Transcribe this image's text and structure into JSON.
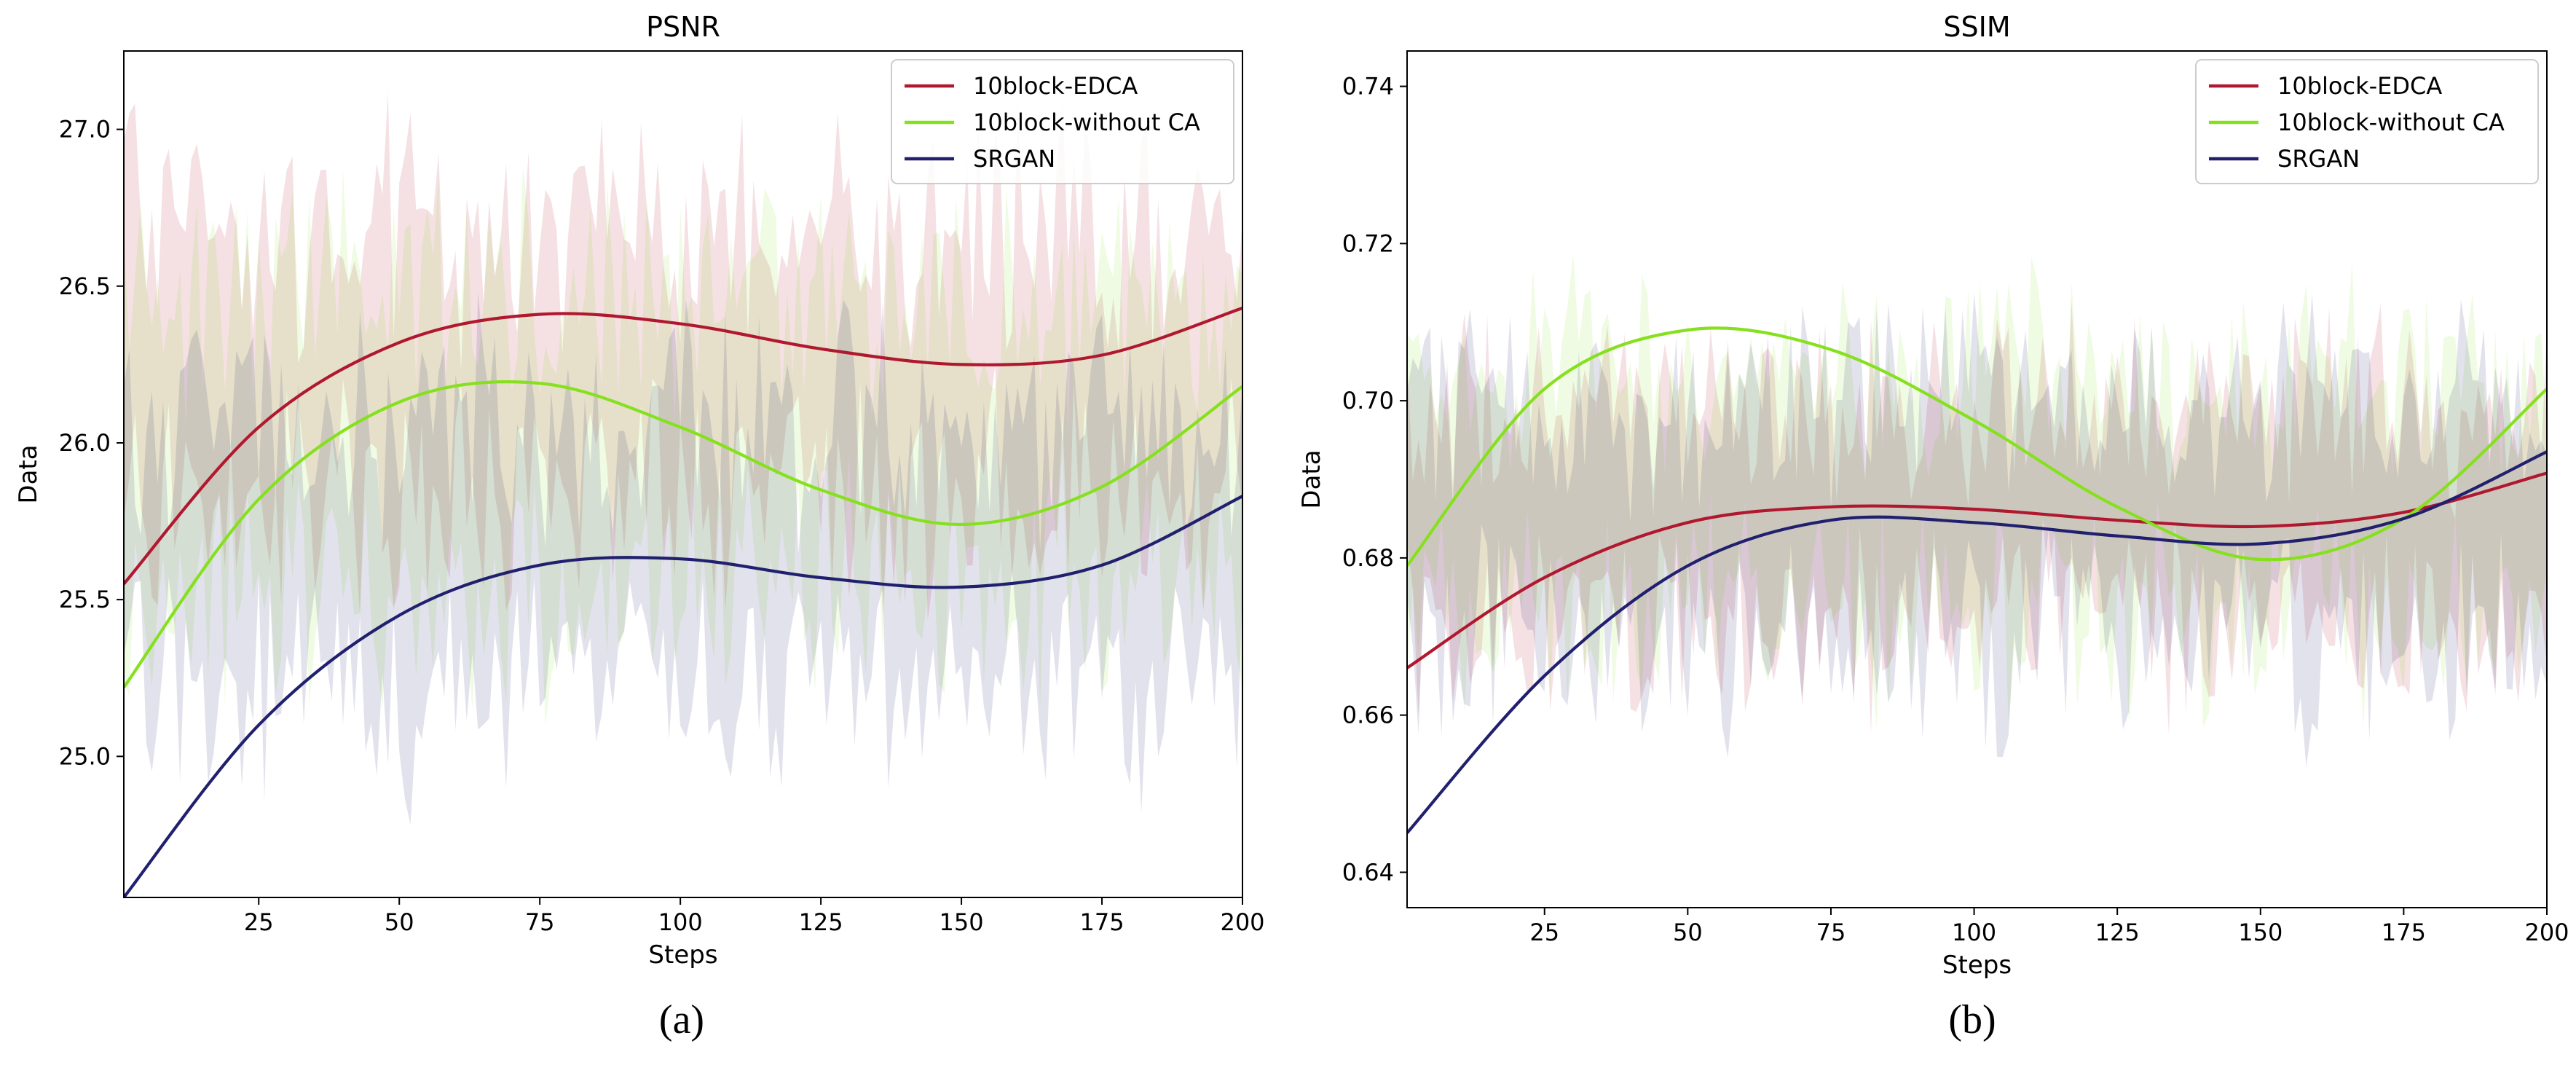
{
  "chart_data": [
    {
      "panel_id": "a",
      "type": "line",
      "title": "PSNR",
      "xlabel": "Steps",
      "ylabel": "Data",
      "caption": "(a)",
      "xlim": [
        1,
        200
      ],
      "ylim": [
        24.55,
        27.25
      ],
      "xticks": [
        25,
        50,
        75,
        100,
        125,
        150,
        175,
        200
      ],
      "yticks": [
        25.0,
        25.5,
        26.0,
        26.5,
        27.0
      ],
      "ytick_labels": [
        "25.0",
        "25.5",
        "26.0",
        "26.5",
        "27.0"
      ],
      "legend_position": "top-right",
      "x": [
        1,
        25,
        50,
        75,
        100,
        125,
        150,
        175,
        200
      ],
      "series": [
        {
          "name": "10block-EDCA",
          "color": "#b0182f",
          "values": [
            25.55,
            26.05,
            26.32,
            26.41,
            26.38,
            26.3,
            26.25,
            26.28,
            26.43
          ],
          "band_low": 25.6,
          "band_high": 26.9
        },
        {
          "name": "10block-without CA",
          "color": "#86e01e",
          "values": [
            25.22,
            25.82,
            26.13,
            26.19,
            26.05,
            25.85,
            25.74,
            25.86,
            26.18
          ],
          "band_low": 25.3,
          "band_high": 26.7
        },
        {
          "name": "SRGAN",
          "color": "#20206e",
          "values": [
            24.55,
            25.1,
            25.45,
            25.61,
            25.63,
            25.57,
            25.54,
            25.61,
            25.83
          ],
          "band_low": 25.0,
          "band_high": 26.3
        }
      ]
    },
    {
      "panel_id": "b",
      "type": "line",
      "title": "SSIM",
      "xlabel": "Steps",
      "ylabel": "Data",
      "caption": "(b)",
      "xlim": [
        1,
        200
      ],
      "ylim": [
        0.6355,
        0.7445
      ],
      "xticks": [
        25,
        50,
        75,
        100,
        125,
        150,
        175,
        200
      ],
      "yticks": [
        0.64,
        0.66,
        0.68,
        0.7,
        0.72,
        0.74
      ],
      "ytick_labels": [
        "0.64",
        "0.66",
        "0.68",
        "0.70",
        "0.72",
        "0.74"
      ],
      "legend_position": "top-right",
      "x": [
        1,
        25,
        50,
        75,
        100,
        125,
        150,
        175,
        200
      ],
      "series": [
        {
          "name": "10block-EDCA",
          "color": "#b0182f",
          "values": [
            0.666,
            0.6775,
            0.6845,
            0.6865,
            0.6862,
            0.6848,
            0.684,
            0.6858,
            0.6908
          ],
          "band_low": 0.664,
          "band_high": 0.706
        },
        {
          "name": "10block-without CA",
          "color": "#86e01e",
          "values": [
            0.679,
            0.7015,
            0.709,
            0.7065,
            0.6975,
            0.6865,
            0.6798,
            0.685,
            0.7015
          ],
          "band_low": 0.665,
          "band_high": 0.712
        },
        {
          "name": "SRGAN",
          "color": "#20206e",
          "values": [
            0.645,
            0.665,
            0.679,
            0.6848,
            0.6845,
            0.6828,
            0.6818,
            0.685,
            0.6935
          ],
          "band_low": 0.66,
          "band_high": 0.708
        }
      ]
    }
  ]
}
